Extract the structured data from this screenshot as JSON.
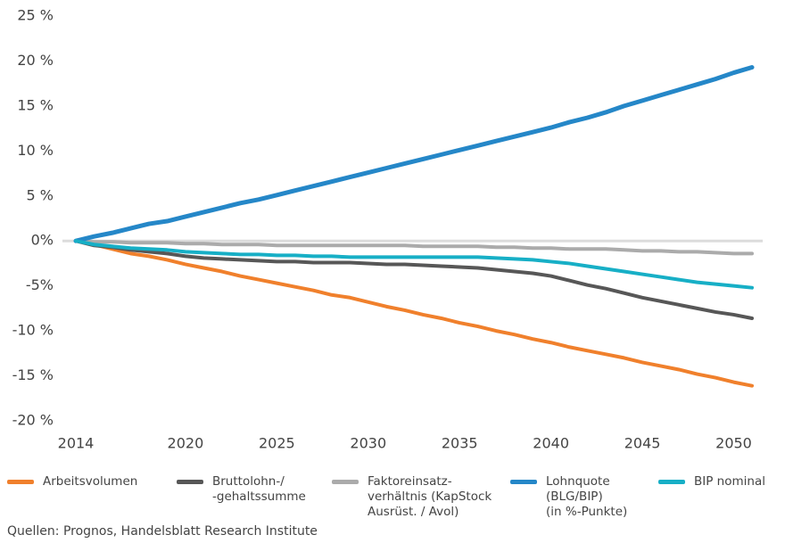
{
  "chart_data": {
    "type": "line",
    "x": [
      2014,
      2015,
      2016,
      2017,
      2018,
      2019,
      2020,
      2021,
      2022,
      2023,
      2024,
      2025,
      2026,
      2027,
      2028,
      2029,
      2030,
      2031,
      2032,
      2033,
      2034,
      2035,
      2036,
      2037,
      2038,
      2039,
      2040,
      2041,
      2042,
      2043,
      2044,
      2045,
      2046,
      2047,
      2048,
      2049,
      2050,
      2051
    ],
    "xlim": [
      2014,
      2051
    ],
    "xticks": [
      2014,
      2020,
      2025,
      2030,
      2035,
      2040,
      2045,
      2050
    ],
    "ylim": [
      -20,
      25
    ],
    "yticks": [
      {
        "value": 25,
        "label": "25 %"
      },
      {
        "value": 20,
        "label": "20 %"
      },
      {
        "value": 15,
        "label": "15 %"
      },
      {
        "value": 10,
        "label": "10 %"
      },
      {
        "value": 5,
        "label": "5 %"
      },
      {
        "value": 0,
        "label": "0%"
      },
      {
        "value": -5,
        "label": "-5%"
      },
      {
        "value": -10,
        "label": "-10 %"
      },
      {
        "value": -15,
        "label": "-15 %"
      },
      {
        "value": -20,
        "label": "-20 %"
      }
    ],
    "grid": false,
    "series": [
      {
        "name": "Arbeitsvolumen",
        "color": "#f0802c",
        "values": [
          0,
          -0.4,
          -0.9,
          -1.4,
          -1.7,
          -2.1,
          -2.6,
          -3.0,
          -3.4,
          -3.9,
          -4.3,
          -4.7,
          -5.1,
          -5.5,
          -6.0,
          -6.3,
          -6.8,
          -7.3,
          -7.7,
          -8.2,
          -8.6,
          -9.1,
          -9.5,
          -10.0,
          -10.4,
          -10.9,
          -11.3,
          -11.8,
          -12.2,
          -12.6,
          -13.0,
          -13.5,
          -13.9,
          -14.3,
          -14.8,
          -15.2,
          -15.7,
          -16.1
        ]
      },
      {
        "name": "Bruttolohn-/\n-gehaltssumme",
        "color": "#575757",
        "values": [
          0,
          -0.5,
          -0.7,
          -1.0,
          -1.2,
          -1.4,
          -1.7,
          -1.9,
          -2.0,
          -2.1,
          -2.2,
          -2.3,
          -2.3,
          -2.4,
          -2.4,
          -2.4,
          -2.5,
          -2.6,
          -2.6,
          -2.7,
          -2.8,
          -2.9,
          -3.0,
          -3.2,
          -3.4,
          -3.6,
          -3.9,
          -4.4,
          -4.9,
          -5.3,
          -5.8,
          -6.3,
          -6.7,
          -7.1,
          -7.5,
          -7.9,
          -8.2,
          -8.6
        ]
      },
      {
        "name": "Faktoreinsatz-\nverhältnis (KapStock\nAusrüst. / Avol)",
        "color": "#ababab",
        "values": [
          0,
          -0.1,
          -0.1,
          -0.2,
          -0.2,
          -0.2,
          -0.3,
          -0.3,
          -0.4,
          -0.4,
          -0.4,
          -0.5,
          -0.5,
          -0.5,
          -0.5,
          -0.5,
          -0.5,
          -0.5,
          -0.5,
          -0.6,
          -0.6,
          -0.6,
          -0.6,
          -0.7,
          -0.7,
          -0.8,
          -0.8,
          -0.9,
          -0.9,
          -0.9,
          -1.0,
          -1.1,
          -1.1,
          -1.2,
          -1.2,
          -1.3,
          -1.4,
          -1.4
        ]
      },
      {
        "name": "Lohnquote\n(BLG/BIP)\n(in %-Punkte)",
        "color": "#2587c8",
        "values": [
          0,
          0.5,
          0.9,
          1.4,
          1.9,
          2.2,
          2.7,
          3.2,
          3.7,
          4.2,
          4.6,
          5.1,
          5.6,
          6.1,
          6.6,
          7.1,
          7.6,
          8.1,
          8.6,
          9.1,
          9.6,
          10.1,
          10.6,
          11.1,
          11.6,
          12.1,
          12.6,
          13.2,
          13.7,
          14.3,
          15.0,
          15.6,
          16.2,
          16.8,
          17.4,
          18.0,
          18.7,
          19.3
        ]
      },
      {
        "name": "BIP nominal",
        "color": "#17afc6",
        "values": [
          0,
          -0.4,
          -0.6,
          -0.8,
          -0.9,
          -1.0,
          -1.2,
          -1.3,
          -1.4,
          -1.5,
          -1.5,
          -1.6,
          -1.6,
          -1.7,
          -1.7,
          -1.8,
          -1.8,
          -1.8,
          -1.8,
          -1.8,
          -1.8,
          -1.8,
          -1.8,
          -1.9,
          -2.0,
          -2.1,
          -2.3,
          -2.5,
          -2.8,
          -3.1,
          -3.4,
          -3.7,
          -4.0,
          -4.3,
          -4.6,
          -4.8,
          -5.0,
          -5.2
        ]
      }
    ],
    "source": "Quellen: Prognos, Handelsblatt Research Institute"
  }
}
